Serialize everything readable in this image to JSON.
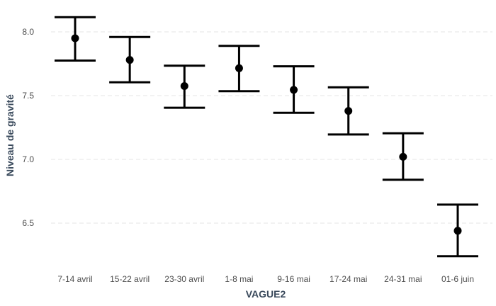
{
  "chart_data": {
    "type": "scatter",
    "subtype": "point-with-error-bars",
    "xlabel": "VAGUE2",
    "ylabel": "Niveau de gravité",
    "categories": [
      "7-14 avril",
      "15-22 avril",
      "23-30 avril",
      "1-8 mai",
      "9-16 mai",
      "17-24 mai",
      "24-31 mai",
      "01-6 juin"
    ],
    "values": [
      7.95,
      7.78,
      7.575,
      7.715,
      7.545,
      7.38,
      7.02,
      6.44
    ],
    "lower": [
      7.775,
      7.605,
      7.405,
      7.535,
      7.365,
      7.195,
      6.84,
      6.24
    ],
    "upper": [
      8.115,
      7.96,
      7.735,
      7.89,
      7.73,
      7.565,
      7.205,
      6.645
    ],
    "yticks": [
      6.5,
      7.0,
      7.5,
      8.0
    ],
    "ytick_labels": [
      "6.5",
      "7.0",
      "7.5",
      "8.0"
    ],
    "ylim": [
      6.16,
      8.2
    ],
    "grid": true,
    "legend": "none",
    "colors": {
      "marks": "#000000",
      "grid": "#e6e6e6",
      "axis_title": "#3a4a5c",
      "tick_text": "#4d4d4d"
    }
  }
}
